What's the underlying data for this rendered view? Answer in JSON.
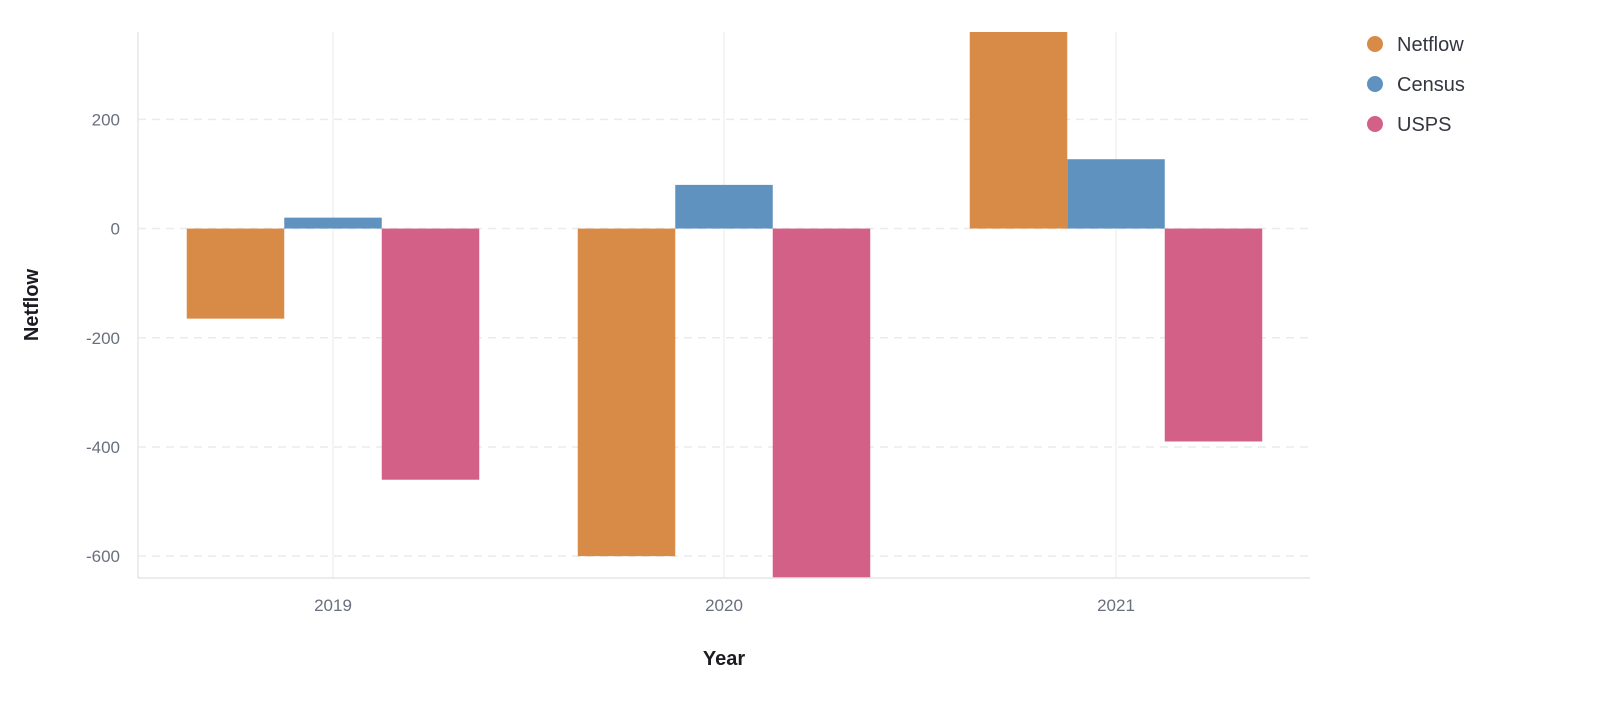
{
  "chart_data": {
    "type": "bar",
    "categories": [
      "2019",
      "2020",
      "2021"
    ],
    "series": [
      {
        "name": "Netflow",
        "color": "#d88b46",
        "values": [
          -165,
          -600,
          360
        ]
      },
      {
        "name": "Census",
        "color": "#6092c0",
        "values": [
          20,
          80,
          127
        ]
      },
      {
        "name": "USPS",
        "color": "#d36086",
        "values": [
          -460,
          -640,
          -390
        ]
      }
    ],
    "xlabel": "Year",
    "ylabel": "Netflow",
    "ylim": [
      -640,
      360
    ],
    "yticks": [
      200,
      0,
      -200,
      -400,
      -600
    ],
    "grid": true,
    "legend_position": "top-right"
  }
}
